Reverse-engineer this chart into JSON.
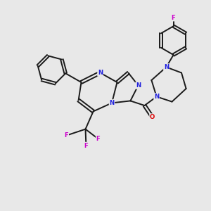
{
  "background_color": "#e8e8e8",
  "bond_color": "#1a1a1a",
  "nitrogen_color": "#2222dd",
  "oxygen_color": "#dd0000",
  "fluorine_color": "#cc00cc",
  "figsize": [
    3.0,
    3.0
  ],
  "dpi": 100,
  "xlim": [
    0,
    10
  ],
  "ylim": [
    0,
    10
  ],
  "lw": 1.4,
  "fs": 6.2
}
